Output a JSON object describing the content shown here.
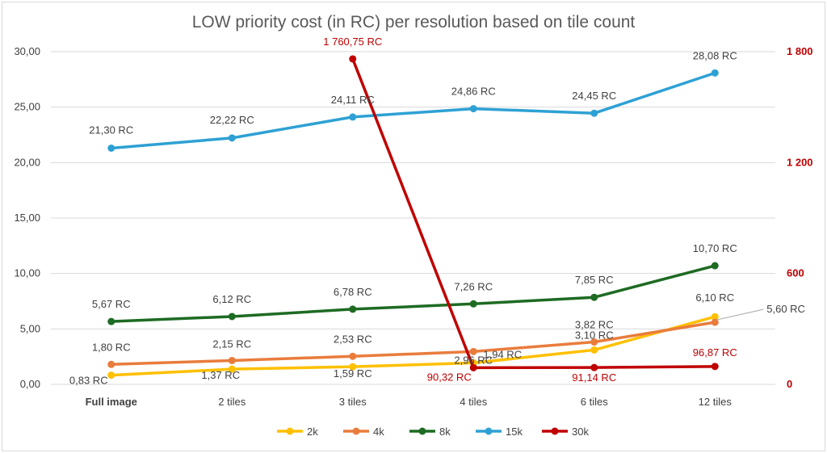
{
  "chart_data": {
    "type": "line",
    "title": "LOW priority cost (in RC) per resolution based on tile count",
    "categories": [
      "Full image",
      "2 tiles",
      "3 tiles",
      "4 tiles",
      "6 tiles",
      "12 tiles"
    ],
    "y_left": {
      "range": [
        0,
        30
      ],
      "ticks": [
        "0,00",
        "5,00",
        "10,00",
        "15,00",
        "20,00",
        "25,00",
        "30,00"
      ]
    },
    "y_right": {
      "range": [
        0,
        1800
      ],
      "ticks": [
        "0",
        "600",
        "1 200",
        "1 800"
      ]
    },
    "grid": true,
    "legend_position": "bottom",
    "series": [
      {
        "name": "2k",
        "color": "#ffc000",
        "axis": "left",
        "values": [
          0.83,
          1.37,
          1.59,
          1.94,
          3.1,
          6.1
        ],
        "labels": [
          "0,83 RC",
          "1,37 RC",
          "1,59 RC",
          "1,94 RC",
          "3,10 RC",
          "6,10 RC"
        ]
      },
      {
        "name": "4k",
        "color": "#e97c3c",
        "axis": "left",
        "values": [
          1.8,
          2.15,
          2.53,
          2.96,
          3.82,
          5.6
        ],
        "labels": [
          "1,80 RC",
          "2,15 RC",
          "2,53 RC",
          "2,96 RC",
          "3,82 RC",
          "5,60 RC"
        ]
      },
      {
        "name": "8k",
        "color": "#1e6b23",
        "axis": "left",
        "values": [
          5.67,
          6.12,
          6.78,
          7.26,
          7.85,
          10.7
        ],
        "labels": [
          "5,67 RC",
          "6,12 RC",
          "6,78 RC",
          "7,26 RC",
          "7,85 RC",
          "10,70 RC"
        ]
      },
      {
        "name": "15k",
        "color": "#2ea1d4",
        "axis": "left",
        "values": [
          21.3,
          22.22,
          24.11,
          24.86,
          24.45,
          28.08
        ],
        "labels": [
          "21,30 RC",
          "22,22 RC",
          "24,11 RC",
          "24,86 RC",
          "24,45 RC",
          "28,08 RC"
        ]
      },
      {
        "name": "30k",
        "color": "#c00000",
        "axis": "right",
        "values": [
          null,
          null,
          1760.75,
          90.32,
          91.14,
          96.87
        ],
        "labels": [
          null,
          null,
          "1 760,75 RC",
          "90,32 RC",
          "91,14 RC",
          "96,87 RC"
        ]
      }
    ]
  }
}
